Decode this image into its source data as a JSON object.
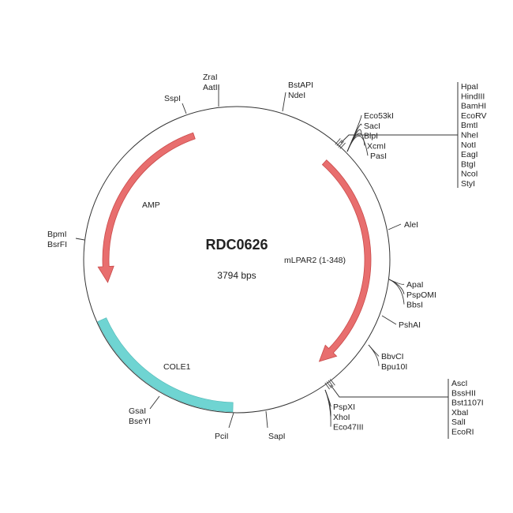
{
  "plasmid": {
    "name": "RDC0626",
    "size": "3794 bps"
  },
  "colors": {
    "cds": "#e86e6e",
    "cds_stroke": "#c94a4a",
    "ori": "#6fd4d2",
    "backbone": "#333333"
  },
  "features": [
    {
      "name": "AMP",
      "type": "cds",
      "direction": "counterclockwise"
    },
    {
      "name": "mLPAR2 (1-348)",
      "type": "cds",
      "direction": "clockwise"
    },
    {
      "name": "COLE1",
      "type": "origin"
    }
  ],
  "sites": [
    [
      "ZraI",
      "AatII"
    ],
    [
      "SspI"
    ],
    [
      "BstAPI",
      "NdeI"
    ],
    [
      "Eco53kI",
      "SacI",
      "BlpI",
      "XcmI",
      "PasI"
    ],
    [
      "HpaI",
      "HindIII",
      "BamHI",
      "EcoRV",
      "BmtI",
      "NheI",
      "NotI",
      "EagI",
      "BtgI",
      "NcoI",
      "StyI"
    ],
    [
      "AleI"
    ],
    [
      "ApaI",
      "PspOMI",
      "BbsI"
    ],
    [
      "PshAI"
    ],
    [
      "BbvCI",
      "Bpu10I"
    ],
    [
      "AscI",
      "BssHII",
      "Bst1107I",
      "XbaI",
      "SalI",
      "EcoRI"
    ],
    [
      "PspXI",
      "XhoI",
      "Eco47III"
    ],
    [
      "SapI"
    ],
    [
      "PciI"
    ],
    [
      "GsaI",
      "BseYI"
    ],
    [
      "BpmI",
      "BsrFI"
    ]
  ]
}
